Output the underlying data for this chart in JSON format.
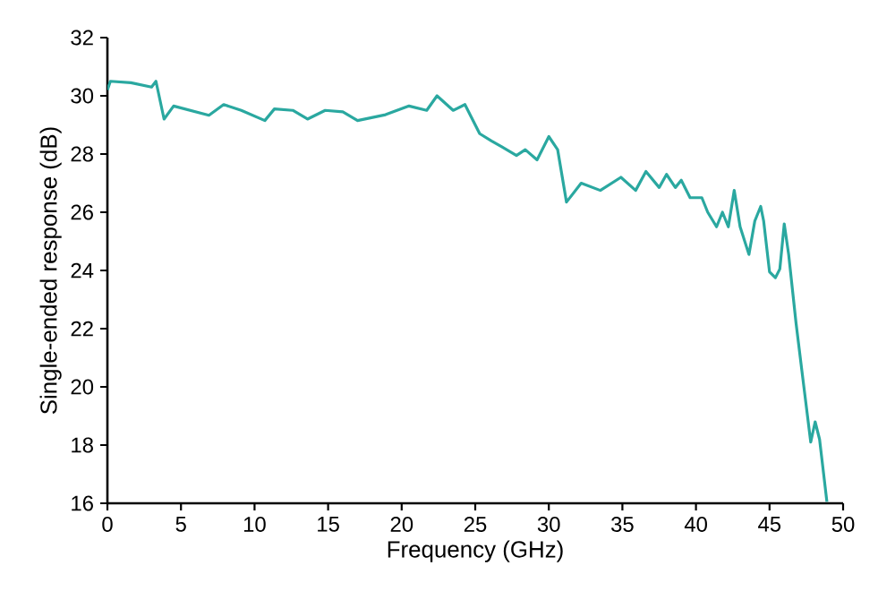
{
  "chart_data": {
    "type": "line",
    "xlabel": "Frequency (GHz)",
    "ylabel": "Single-ended response (dB)",
    "xlim": [
      0,
      50
    ],
    "xticks": [
      0,
      5,
      10,
      15,
      20,
      25,
      30,
      35,
      40,
      45,
      50
    ],
    "ylim": [
      16,
      32
    ],
    "yticks": [
      16,
      18,
      20,
      22,
      24,
      26,
      28,
      30,
      32
    ],
    "marker": "none",
    "line_style": "solid",
    "series": [
      {
        "color": "#2aa8a0",
        "x": [
          0,
          0.2,
          1.6,
          3.0,
          3.3,
          3.85,
          4.5,
          6.9,
          7.9,
          9.1,
          10.7,
          11.35,
          12.6,
          13.6,
          14.8,
          16.0,
          17.0,
          18.9,
          20.5,
          21.7,
          22.4,
          23.5,
          24.3,
          25.3,
          26.1,
          26.8,
          27.8,
          28.4,
          29.2,
          30.0,
          30.6,
          31.2,
          32.2,
          33.5,
          34.9,
          35.9,
          36.6,
          37.5,
          38.0,
          38.6,
          39.0,
          39.6,
          40.4,
          40.8,
          41.4,
          41.8,
          42.2,
          42.6,
          43.0,
          43.6,
          44.0,
          44.4,
          44.6,
          45.0,
          45.4,
          45.7,
          46.0,
          46.3,
          46.8,
          47.2,
          47.8,
          48.1,
          48.4,
          48.9
        ],
        "values": [
          30.2,
          30.5,
          30.45,
          30.3,
          30.5,
          29.2,
          29.65,
          29.33,
          29.7,
          29.5,
          29.15,
          29.55,
          29.5,
          29.2,
          29.5,
          29.45,
          29.15,
          29.35,
          29.65,
          29.5,
          30.0,
          29.5,
          29.7,
          28.7,
          28.45,
          28.25,
          27.95,
          28.15,
          27.8,
          28.6,
          28.15,
          26.35,
          27.0,
          26.75,
          27.2,
          26.75,
          27.4,
          26.85,
          27.3,
          26.85,
          27.1,
          26.5,
          26.5,
          26.0,
          25.5,
          26.0,
          25.5,
          26.75,
          25.5,
          24.55,
          25.7,
          26.2,
          25.7,
          23.95,
          23.75,
          24.05,
          25.6,
          24.55,
          22.2,
          20.55,
          18.1,
          18.8,
          18.2,
          16.05
        ]
      }
    ]
  }
}
